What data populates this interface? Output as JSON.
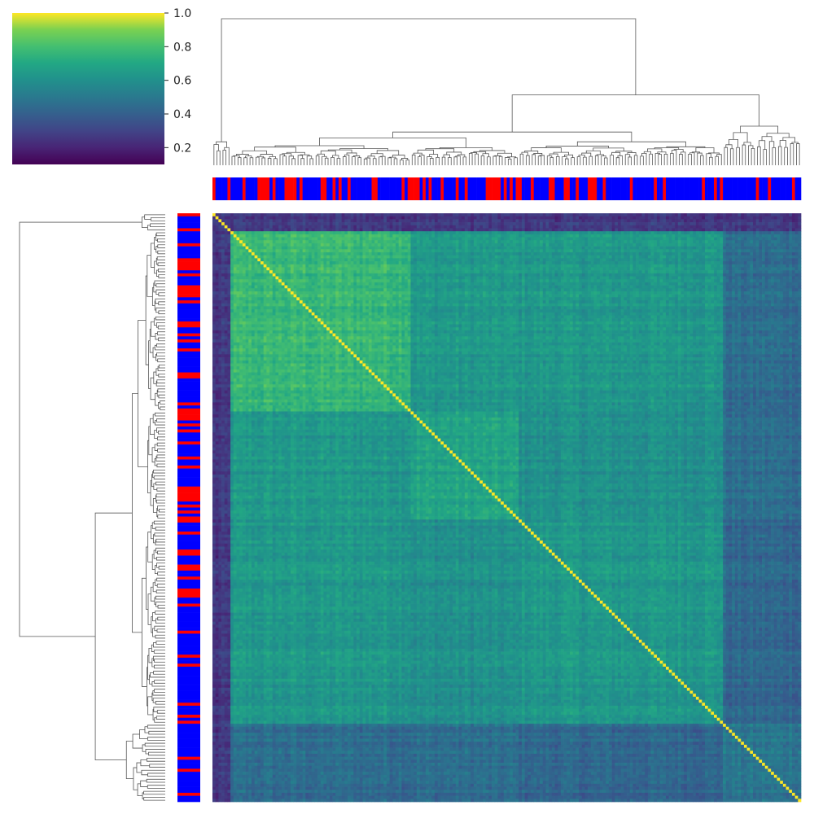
{
  "chart_data": {
    "type": "heatmap",
    "subtype": "clustermap",
    "title": "",
    "xlabel": "",
    "ylabel": "",
    "n": 196,
    "colormap": "viridis",
    "value_range": [
      0.1,
      1.0
    ],
    "diagonal_value": 1.0,
    "colorbar": {
      "ticks": [
        0.2,
        0.4,
        0.6,
        0.8,
        1.0
      ],
      "tick_labels": [
        "0.2",
        "0.4",
        "0.6",
        "0.8",
        "1.0"
      ],
      "placement": "top-left"
    },
    "clusters": [
      {
        "id": "A",
        "count": 6,
        "within": 0.25
      },
      {
        "id": "B",
        "count": 60,
        "within": 0.7
      },
      {
        "id": "C",
        "count": 36,
        "within": 0.62
      },
      {
        "id": "D",
        "count": 68,
        "within": 0.58
      },
      {
        "id": "E",
        "count": 26,
        "within": 0.45
      }
    ],
    "between_clusters": {
      "A": 0.24,
      "B-C": 0.58,
      "B-D": 0.58,
      "B-E": 0.42,
      "C-D": 0.55,
      "C-E": 0.42,
      "D-E": 0.4
    },
    "annotation_colors": {
      "group_1": "#ff0000",
      "group_2": "#0000ff"
    },
    "group_1_positions": [
      0,
      5,
      10,
      15,
      16,
      17,
      18,
      20,
      24,
      25,
      26,
      27,
      29,
      36,
      37,
      40,
      42,
      45,
      53,
      54,
      63,
      65,
      66,
      67,
      68,
      70,
      72,
      76,
      81,
      84,
      91,
      92,
      93,
      94,
      95,
      97,
      99,
      101,
      102,
      106,
      112,
      113,
      117,
      118,
      121,
      125,
      126,
      127,
      130,
      139,
      147,
      150,
      163,
      167,
      169,
      181,
      185,
      193
    ],
    "dendrogram_root": {
      "split": "A | rest",
      "rest_split": "(B,C,D) | E",
      "bcd_split": "(B,C) | D"
    }
  },
  "colors": {
    "background": "#ffffff",
    "dendrogram_line": "#555555",
    "group_1": "#ff0000",
    "group_2": "#0000ff"
  }
}
